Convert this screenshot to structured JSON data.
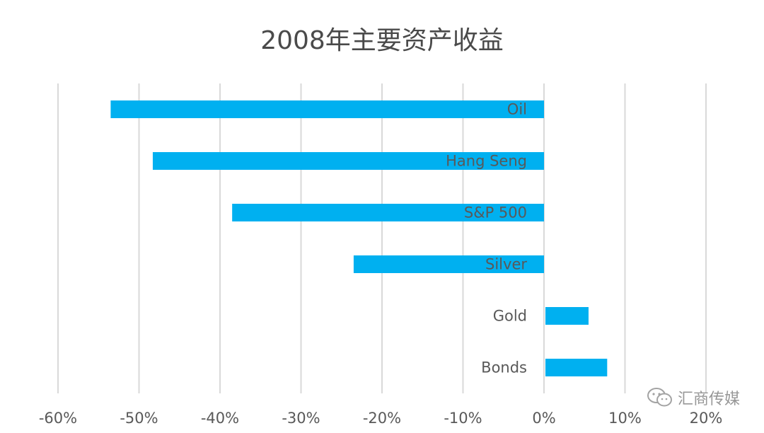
{
  "chart_data": {
    "type": "bar",
    "orientation": "horizontal",
    "title": "2008年主要资产收益",
    "categories": [
      "Oil",
      "Hang  Seng",
      "S&P 500",
      "Silver",
      "Gold",
      "Bonds"
    ],
    "values": [
      -53.5,
      -48.3,
      -38.5,
      -23.5,
      5.5,
      7.8
    ],
    "x_ticks": [
      "-60%",
      "-50%",
      "-40%",
      "-30%",
      "-20%",
      "-10%",
      "0%",
      "10%",
      "20%"
    ],
    "xlim": [
      -60,
      20
    ],
    "grid": "vertical",
    "legend": "none",
    "bar_color": "#00b0f0",
    "label_color": "#595959",
    "grid_color": "#d9d9d9"
  },
  "watermark": {
    "text": "汇商传媒",
    "icon": "wechat-icon"
  }
}
